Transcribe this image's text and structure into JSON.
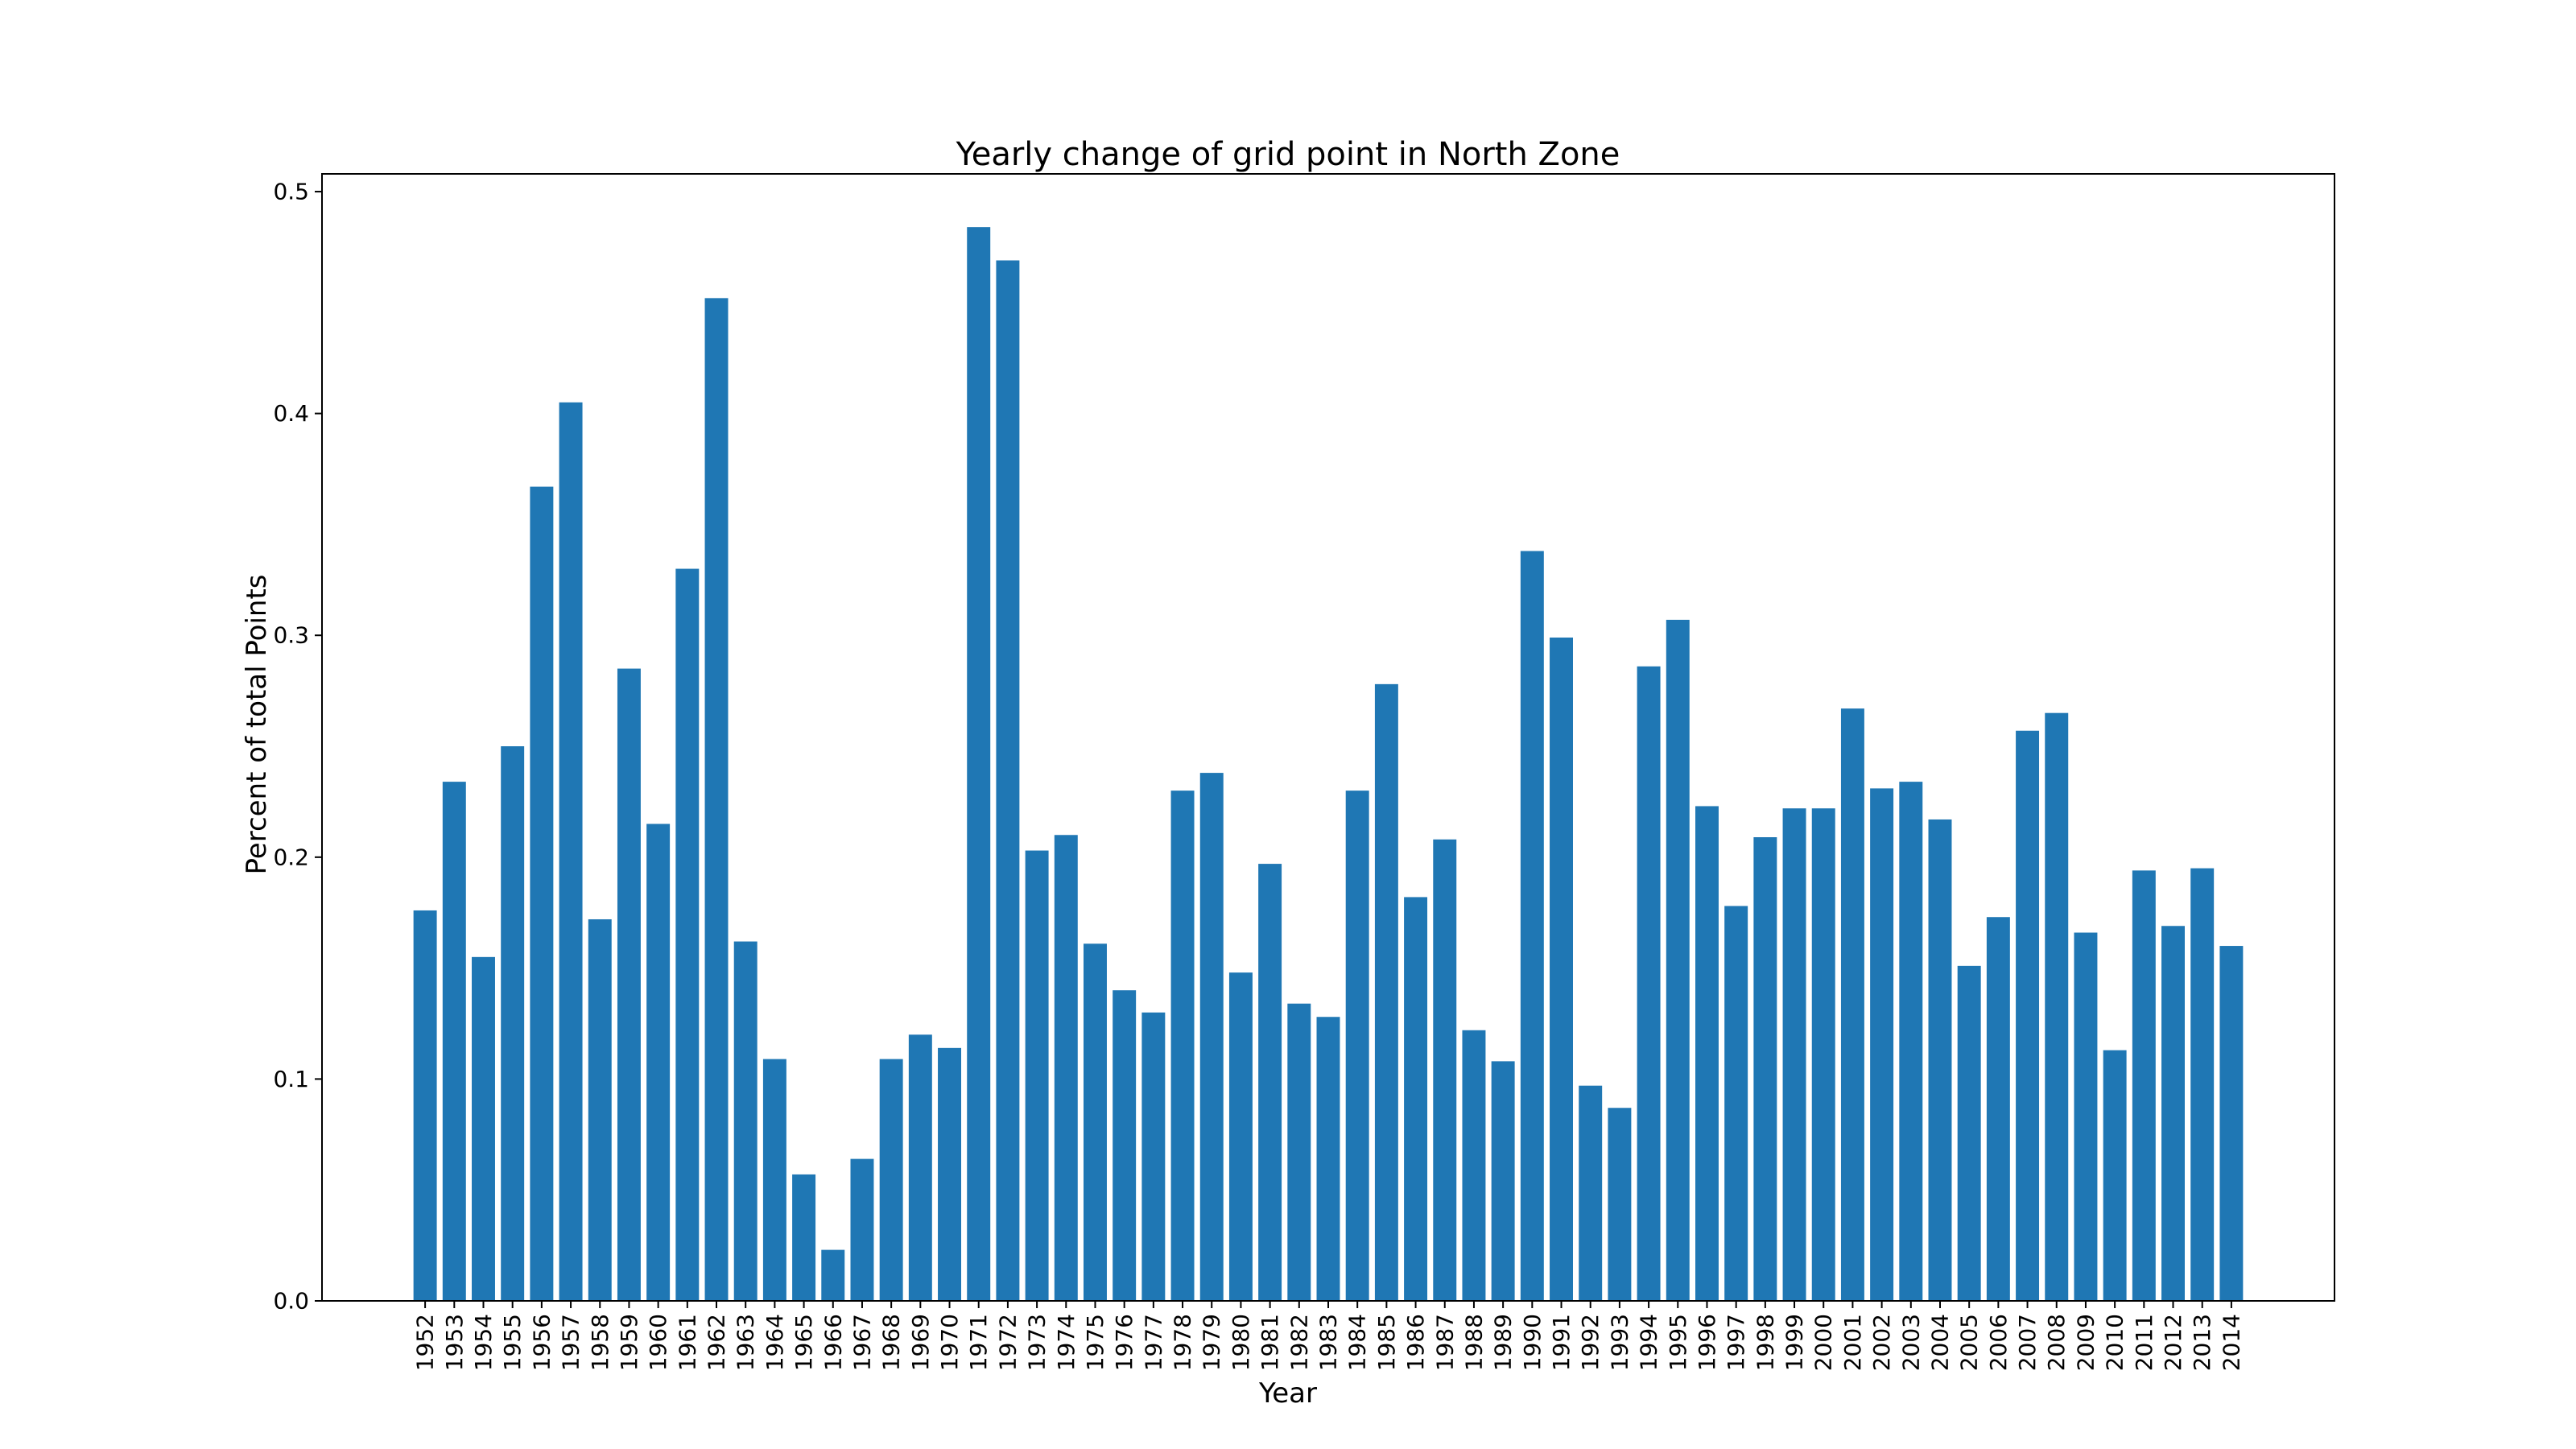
{
  "chart_data": {
    "type": "bar",
    "title": "Yearly change of grid point in North Zone",
    "xlabel": "Year",
    "ylabel": "Percent of total Points",
    "ylim": [
      0,
      0.508
    ],
    "yticks": [
      "0.0",
      "0.1",
      "0.2",
      "0.3",
      "0.4",
      "0.5"
    ],
    "grid": false,
    "bar_color": "#1f77b4",
    "categories": [
      "1952",
      "1953",
      "1954",
      "1955",
      "1956",
      "1957",
      "1958",
      "1959",
      "1960",
      "1961",
      "1962",
      "1963",
      "1964",
      "1965",
      "1966",
      "1967",
      "1968",
      "1969",
      "1970",
      "1971",
      "1972",
      "1973",
      "1974",
      "1975",
      "1976",
      "1977",
      "1978",
      "1979",
      "1980",
      "1981",
      "1982",
      "1983",
      "1984",
      "1985",
      "1986",
      "1987",
      "1988",
      "1989",
      "1990",
      "1991",
      "1992",
      "1993",
      "1994",
      "1995",
      "1996",
      "1997",
      "1998",
      "1999",
      "2000",
      "2001",
      "2002",
      "2003",
      "2004",
      "2005",
      "2006",
      "2007",
      "2008",
      "2009",
      "2010",
      "2011",
      "2012",
      "2013",
      "2014"
    ],
    "values": [
      0.176,
      0.234,
      0.155,
      0.25,
      0.367,
      0.405,
      0.172,
      0.285,
      0.215,
      0.33,
      0.452,
      0.162,
      0.109,
      0.057,
      0.023,
      0.064,
      0.109,
      0.12,
      0.114,
      0.484,
      0.469,
      0.203,
      0.21,
      0.161,
      0.14,
      0.13,
      0.23,
      0.238,
      0.148,
      0.197,
      0.134,
      0.128,
      0.23,
      0.278,
      0.182,
      0.208,
      0.122,
      0.108,
      0.338,
      0.299,
      0.097,
      0.087,
      0.286,
      0.307,
      0.223,
      0.178,
      0.209,
      0.222,
      0.222,
      0.267,
      0.231,
      0.234,
      0.217,
      0.151,
      0.173,
      0.257,
      0.265,
      0.166,
      0.113,
      0.194,
      0.169,
      0.195,
      0.16
    ]
  }
}
